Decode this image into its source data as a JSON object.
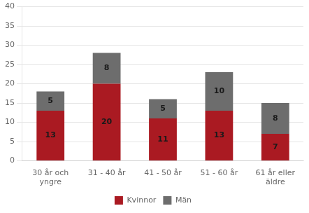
{
  "chart_data": {
    "type": "bar",
    "categories": [
      "30 år och\nyngre",
      "31 - 40 år",
      "41 - 50 år",
      "51 - 60 år",
      "61 år eller\näldre"
    ],
    "series": [
      {
        "name": "Kvinnor",
        "color": "#aa1a22",
        "values": [
          13,
          20,
          11,
          13,
          7
        ]
      },
      {
        "name": "Män",
        "color": "#6d6d6d",
        "values": [
          5,
          8,
          5,
          10,
          8
        ]
      }
    ],
    "stacked": true,
    "ylim": [
      0,
      40
    ],
    "yticks": [
      0,
      5,
      10,
      15,
      20,
      25,
      30,
      35,
      40
    ],
    "grid": true,
    "legend": "bottom",
    "data_labels": true
  }
}
